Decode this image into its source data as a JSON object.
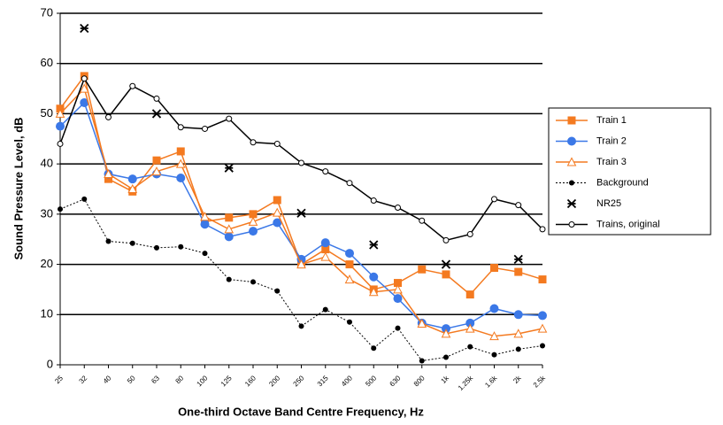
{
  "chart_data": {
    "type": "line",
    "y_label": "Sound Pressure Level, dB",
    "x_label": "One-third Octave Band Centre Frequency, Hz",
    "categories": [
      "25",
      "32",
      "40",
      "50",
      "63",
      "80",
      "100",
      "125",
      "160",
      "200",
      "250",
      "315",
      "400",
      "500",
      "630",
      "800",
      "1k",
      "1.25k",
      "1.6k",
      "2k",
      "2.5k"
    ],
    "ylim": [
      0,
      70
    ],
    "yticks": [
      0,
      10,
      20,
      30,
      40,
      50,
      60,
      70
    ],
    "grid": true,
    "series": [
      {
        "name": "Train 1",
        "color": "#f47a20",
        "marker": "square",
        "line": "solid",
        "values": [
          51,
          57.5,
          37,
          34.5,
          40.7,
          42.5,
          28.5,
          29.3,
          30,
          32.8,
          20,
          23,
          20,
          15,
          16.3,
          19,
          18,
          14,
          19.3,
          18.5,
          17
        ]
      },
      {
        "name": "Train 2",
        "color": "#3b78e7",
        "marker": "circle",
        "line": "solid",
        "values": [
          47.5,
          52.2,
          38,
          37,
          38,
          37.2,
          28,
          25.5,
          26.6,
          28.3,
          21,
          24.3,
          22.2,
          17.5,
          13.2,
          8.3,
          7.2,
          8.3,
          11.2,
          10,
          9.8
        ]
      },
      {
        "name": "Train 3",
        "color": "#f47a20",
        "marker": "triangle",
        "line": "solid",
        "values": [
          50,
          55,
          38,
          35,
          38.5,
          40,
          29.5,
          27,
          28.5,
          30.3,
          20,
          21.5,
          17,
          14.5,
          15,
          8.2,
          6.2,
          7.2,
          5.7,
          6.2,
          7.2
        ]
      },
      {
        "name": "Background",
        "color": "#000000",
        "marker": "dot",
        "line": "dotted",
        "values": [
          31,
          33,
          24.6,
          24.2,
          23.3,
          23.5,
          22.2,
          17,
          16.5,
          14.7,
          7.7,
          11,
          8.5,
          3.3,
          7.3,
          0.8,
          1.5,
          3.6,
          2,
          3.1,
          3.8
        ]
      },
      {
        "name": "NR25",
        "color": "#000000",
        "marker": "asterisk",
        "line": "none",
        "values": [
          null,
          67,
          null,
          null,
          50,
          null,
          null,
          39.2,
          null,
          null,
          30.2,
          null,
          null,
          23.9,
          null,
          null,
          20,
          null,
          null,
          21,
          null
        ]
      },
      {
        "name": "Trains, original",
        "color": "#000000",
        "marker": "open-circle",
        "line": "solid",
        "values": [
          44,
          57,
          49.3,
          55.5,
          53,
          47.3,
          47,
          49,
          44.3,
          44,
          40.2,
          38.5,
          36.2,
          32.7,
          31.3,
          28.7,
          24.8,
          26,
          33,
          31.8,
          27
        ]
      }
    ]
  }
}
